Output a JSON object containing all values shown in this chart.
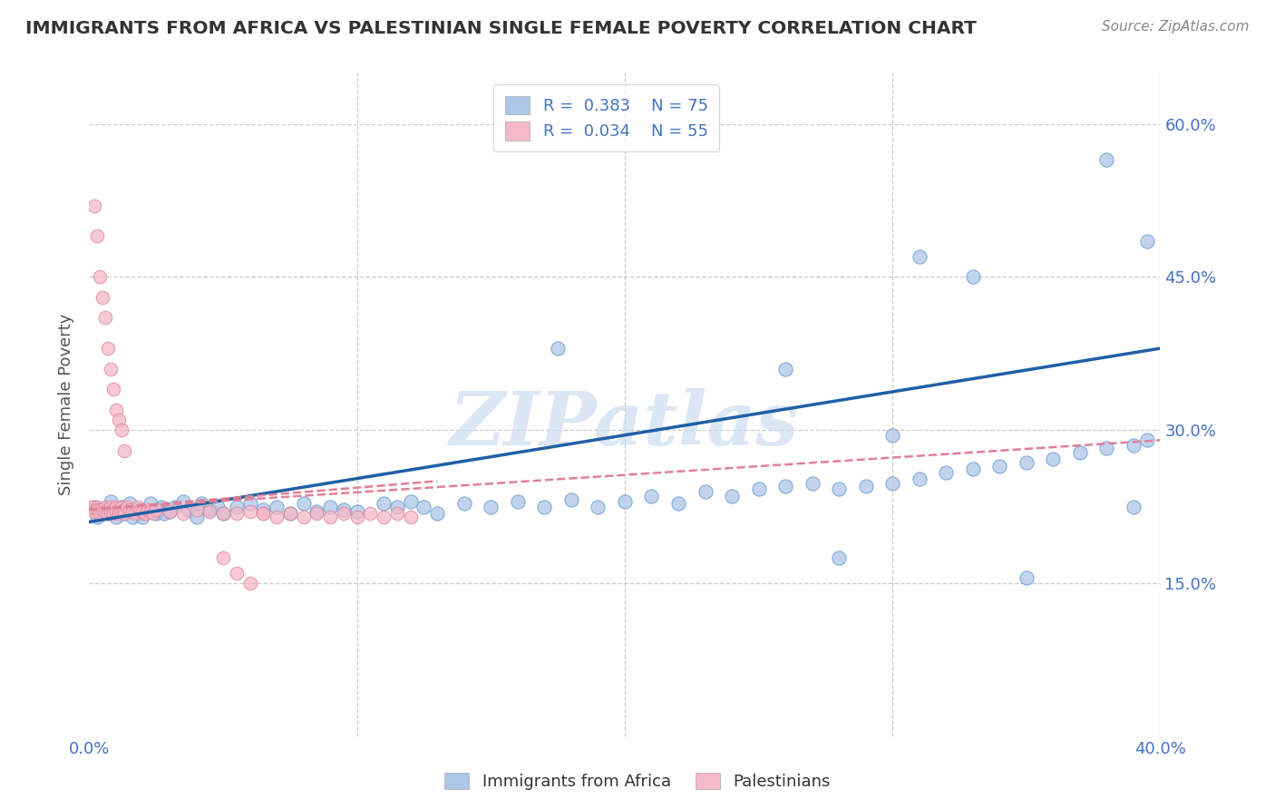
{
  "title": "IMMIGRANTS FROM AFRICA VS PALESTINIAN SINGLE FEMALE POVERTY CORRELATION CHART",
  "source": "Source: ZipAtlas.com",
  "ylabel": "Single Female Poverty",
  "xlim": [
    0.0,
    0.4
  ],
  "ylim": [
    0.0,
    0.65
  ],
  "ytick_right": [
    0.15,
    0.3,
    0.45,
    0.6
  ],
  "ytick_right_labels": [
    "15.0%",
    "30.0%",
    "45.0%",
    "60.0%"
  ],
  "xticks": [
    0.0,
    0.1,
    0.2,
    0.3,
    0.4
  ],
  "xtick_labels": [
    "0.0%",
    "",
    "",
    "",
    "40.0%"
  ],
  "watermark": "ZIPatlas",
  "legend_entries": [
    {
      "label": "Immigrants from Africa",
      "R": "0.383",
      "N": "75",
      "color": "#aec6e8"
    },
    {
      "label": "Palestinians",
      "R": "0.034",
      "N": "55",
      "color": "#f4b8c8"
    }
  ],
  "blue_scatter_x": [
    0.002,
    0.003,
    0.005,
    0.007,
    0.008,
    0.009,
    0.01,
    0.012,
    0.013,
    0.014,
    0.015,
    0.016,
    0.018,
    0.019,
    0.02,
    0.022,
    0.023,
    0.025,
    0.026,
    0.027,
    0.028,
    0.03,
    0.032,
    0.035,
    0.037,
    0.04,
    0.042,
    0.045,
    0.048,
    0.05,
    0.055,
    0.06,
    0.065,
    0.07,
    0.075,
    0.08,
    0.085,
    0.09,
    0.095,
    0.1,
    0.11,
    0.115,
    0.12,
    0.125,
    0.13,
    0.14,
    0.15,
    0.16,
    0.17,
    0.18,
    0.19,
    0.2,
    0.21,
    0.22,
    0.23,
    0.24,
    0.25,
    0.26,
    0.27,
    0.28,
    0.29,
    0.3,
    0.31,
    0.32,
    0.33,
    0.34,
    0.35,
    0.36,
    0.37,
    0.38,
    0.39,
    0.395,
    0.28,
    0.35,
    0.39
  ],
  "blue_scatter_y": [
    0.225,
    0.215,
    0.22,
    0.218,
    0.23,
    0.222,
    0.215,
    0.225,
    0.218,
    0.22,
    0.228,
    0.215,
    0.222,
    0.218,
    0.215,
    0.22,
    0.228,
    0.218,
    0.222,
    0.225,
    0.218,
    0.22,
    0.225,
    0.23,
    0.222,
    0.215,
    0.228,
    0.222,
    0.225,
    0.218,
    0.225,
    0.228,
    0.222,
    0.225,
    0.218,
    0.228,
    0.22,
    0.225,
    0.222,
    0.22,
    0.228,
    0.225,
    0.23,
    0.225,
    0.218,
    0.228,
    0.225,
    0.23,
    0.225,
    0.232,
    0.225,
    0.23,
    0.235,
    0.228,
    0.24,
    0.235,
    0.242,
    0.245,
    0.248,
    0.242,
    0.245,
    0.248,
    0.252,
    0.258,
    0.262,
    0.265,
    0.268,
    0.272,
    0.278,
    0.282,
    0.285,
    0.29,
    0.175,
    0.155,
    0.225
  ],
  "blue_outliers_x": [
    0.26,
    0.31,
    0.33,
    0.38,
    0.395,
    0.175,
    0.3
  ],
  "blue_outliers_y": [
    0.36,
    0.47,
    0.45,
    0.565,
    0.485,
    0.38,
    0.295
  ],
  "pink_scatter_x": [
    0.001,
    0.002,
    0.003,
    0.003,
    0.004,
    0.004,
    0.005,
    0.006,
    0.006,
    0.007,
    0.007,
    0.008,
    0.008,
    0.009,
    0.009,
    0.01,
    0.01,
    0.011,
    0.011,
    0.012,
    0.012,
    0.013,
    0.013,
    0.014,
    0.015,
    0.016,
    0.017,
    0.018,
    0.019,
    0.02,
    0.021,
    0.022,
    0.023,
    0.024,
    0.025,
    0.03,
    0.035,
    0.04,
    0.045,
    0.05,
    0.055,
    0.06,
    0.065,
    0.07,
    0.075,
    0.08,
    0.085,
    0.09,
    0.095,
    0.1,
    0.105,
    0.11,
    0.115,
    0.12,
    0.065
  ],
  "pink_scatter_y": [
    0.225,
    0.22,
    0.225,
    0.222,
    0.222,
    0.218,
    0.222,
    0.225,
    0.22,
    0.222,
    0.218,
    0.225,
    0.22,
    0.222,
    0.218,
    0.225,
    0.22,
    0.222,
    0.218,
    0.225,
    0.22,
    0.222,
    0.218,
    0.225,
    0.222,
    0.22,
    0.218,
    0.225,
    0.222,
    0.22,
    0.218,
    0.222,
    0.22,
    0.218,
    0.222,
    0.22,
    0.218,
    0.222,
    0.22,
    0.218,
    0.218,
    0.22,
    0.218,
    0.215,
    0.218,
    0.215,
    0.218,
    0.215,
    0.218,
    0.215,
    0.218,
    0.215,
    0.218,
    0.215,
    0.218
  ],
  "pink_outliers_x": [
    0.002,
    0.003,
    0.004,
    0.005,
    0.006,
    0.007,
    0.008,
    0.009,
    0.01,
    0.011,
    0.012,
    0.013,
    0.05,
    0.055,
    0.06
  ],
  "pink_outliers_y": [
    0.52,
    0.49,
    0.45,
    0.43,
    0.41,
    0.38,
    0.36,
    0.34,
    0.32,
    0.31,
    0.3,
    0.28,
    0.175,
    0.16,
    0.15
  ],
  "blue_line_color": "#1f5fa6",
  "pink_line_color": "#e08098",
  "axis_color": "#4472c4",
  "title_color": "#333333",
  "source_color": "#888888",
  "watermark_color": "#ccddf0"
}
